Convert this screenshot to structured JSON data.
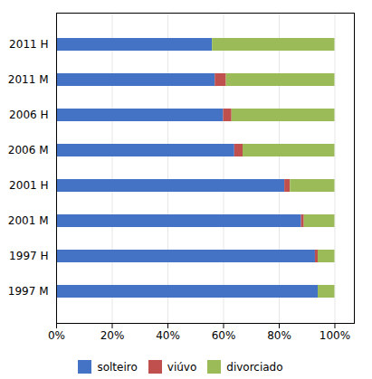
{
  "chart_data": {
    "type": "bar",
    "orientation": "horizontal",
    "stacked": true,
    "categories": [
      "1997 M",
      "1997 H",
      "2001 M",
      "2001 H",
      "2006 M",
      "2006 H",
      "2011 M",
      "2011 H"
    ],
    "series": [
      {
        "name": "solteiro",
        "color": "#4472C4",
        "values": [
          94,
          93,
          88,
          82,
          64,
          60,
          57,
          56
        ]
      },
      {
        "name": "viúvo",
        "color": "#C0504D",
        "values": [
          0,
          1,
          1,
          2,
          3,
          3,
          4,
          0
        ]
      },
      {
        "name": "divorciado",
        "color": "#9BBB59",
        "values": [
          6,
          6,
          11,
          16,
          33,
          37,
          39,
          44
        ]
      }
    ],
    "xlim": [
      0,
      107
    ],
    "xticks": [
      {
        "value": 0,
        "label": "0%"
      },
      {
        "value": 20,
        "label": "20%"
      },
      {
        "value": 40,
        "label": "40%"
      },
      {
        "value": 60,
        "label": "60%"
      },
      {
        "value": 80,
        "label": "80%"
      },
      {
        "value": 100,
        "label": "100%"
      }
    ],
    "grid": true,
    "legend": "bottom"
  }
}
